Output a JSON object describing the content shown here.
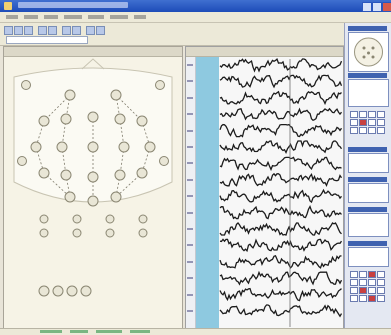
{
  "window": {
    "title": ""
  },
  "colors": {
    "trace": "#1c1c1c",
    "highlight": "#8ec9e0",
    "electrode_fill": "#e9e6d6",
    "electrode_stroke": "#8a8672"
  },
  "electrodes": {
    "scalp": [
      {
        "id": "fp1"
      },
      {
        "id": "fp2"
      },
      {
        "id": "f7"
      },
      {
        "id": "f3"
      },
      {
        "id": "fz"
      },
      {
        "id": "f4"
      },
      {
        "id": "f8"
      },
      {
        "id": "t3"
      },
      {
        "id": "c3"
      },
      {
        "id": "cz"
      },
      {
        "id": "c4"
      },
      {
        "id": "t4"
      },
      {
        "id": "t5"
      },
      {
        "id": "p3"
      },
      {
        "id": "pz"
      },
      {
        "id": "p4"
      },
      {
        "id": "t6"
      },
      {
        "id": "o1"
      },
      {
        "id": "oz"
      },
      {
        "id": "o2"
      }
    ],
    "extra_row_count": 4,
    "bottom_row_count": 4
  },
  "eeg": {
    "channel_count": 16
  },
  "icons": {
    "scalp_map": "head-outline-icon",
    "electrode": "circle-electrode-icon"
  }
}
